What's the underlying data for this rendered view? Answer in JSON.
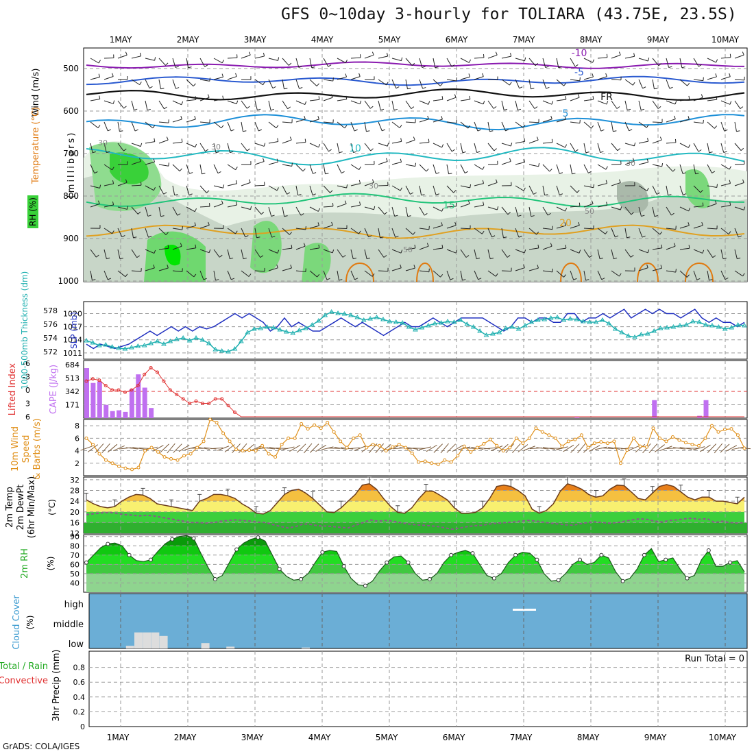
{
  "header": {
    "title": "GFS 0~10day 3-hourly for TOLIARA (43.75E, 23.5S)",
    "credit": "GrADS: COLA/IGES"
  },
  "colors": {
    "rh_green": "#39d139",
    "temp_orange": "#e07a10",
    "temp_purple": "#8a1ab0",
    "slp_blue": "#2030c0",
    "thickness_cyan": "#20b0b0",
    "cape_violet": "#c070f0",
    "lifted_red": "#e03030",
    "wind_orange": "#e0901a",
    "cloud_blue": "#6baed6",
    "precip_green": "#22aa22"
  },
  "chart_data": [
    {
      "panel": "upper_air_cross_section",
      "type": "heatmap",
      "x_tick_labels": [
        "1MAY",
        "2MAY",
        "3MAY",
        "4MAY",
        "5MAY",
        "6MAY",
        "7MAY",
        "8MAY",
        "9MAY",
        "10MAY"
      ],
      "ylabel": "(millibars)",
      "legend_labels": [
        "RH (%)",
        "Temperature (°C)",
        "Wind (m/s)"
      ],
      "y_ticks": [
        500,
        600,
        700,
        800,
        900,
        1000
      ],
      "ylim": [
        450,
        1000
      ],
      "contour_labels": [
        "-10",
        "-5",
        "FR",
        "5",
        "10",
        "15",
        "20",
        "30",
        "50",
        "70"
      ]
    },
    {
      "panel": "slp_thickness",
      "type": "line",
      "ylabel_left": "1000-500mb Thickness (dm)",
      "ylabel_right": "SLP (mb)",
      "left_ticks": [
        572,
        574,
        576,
        578
      ],
      "right_ticks": [
        1011,
        1014,
        1017,
        1020
      ],
      "series": [
        {
          "name": "SLP",
          "axis": "right",
          "values": [
            1013,
            1012,
            1013,
            1012.5,
            1012,
            1012.5,
            1013,
            1014,
            1015,
            1016,
            1015,
            1016,
            1017,
            1016,
            1017,
            1016,
            1017,
            1016.5,
            1017,
            1018,
            1019,
            1020,
            1019,
            1020,
            1019,
            1018,
            1016,
            1017,
            1019,
            1017,
            1018,
            1017,
            1016,
            1016,
            1017,
            1018,
            1019,
            1018,
            1017,
            1018,
            1017,
            1016,
            1015,
            1016,
            1017,
            1018,
            1017,
            1017,
            1018,
            1019,
            1018,
            1017,
            1018,
            1019,
            1019,
            1019,
            1019,
            1018,
            1017,
            1016,
            1017,
            1019,
            1019,
            1018,
            1019,
            1019,
            1018,
            1018,
            1020,
            1020,
            1018,
            1019,
            1019,
            1020,
            1019,
            1020,
            1021,
            1019,
            1020,
            1021,
            1020,
            1021,
            1020,
            1020,
            1019,
            1020,
            1021,
            1019,
            1018,
            1019,
            1018,
            1018,
            1017,
            1018
          ]
        },
        {
          "name": "Thickness",
          "axis": "left",
          "values": [
            573.6,
            573.3,
            572.9,
            573,
            572.7,
            572.5,
            572.4,
            572.6,
            572.8,
            572.9,
            573.2,
            573.5,
            573.1,
            573.5,
            573.8,
            574,
            573.6,
            574,
            573.7,
            573.2,
            572.3,
            572.1,
            572,
            572.4,
            573.5,
            574.8,
            575.3,
            575.4,
            575.6,
            575.5,
            575.2,
            574.9,
            574.7,
            575.1,
            575.4,
            575.9,
            576.5,
            577.3,
            577.8,
            577.6,
            577.5,
            577.3,
            577,
            576.6,
            576.8,
            577,
            576.7,
            576.4,
            576.3,
            576.2,
            575.6,
            575.2,
            575.5,
            575.8,
            576.1,
            576.2,
            576.4,
            576.3,
            576.6,
            576,
            575.6,
            575,
            574.4,
            574.6,
            574.8,
            575.4,
            575.6,
            575.3,
            575.8,
            576.3,
            576.6,
            576.7,
            576.9,
            577,
            576.6,
            576.8,
            576.7,
            576.4,
            576.3,
            576.3,
            576.6,
            576.1,
            575.3,
            574.8,
            574.3,
            574.1,
            574.5,
            574.6,
            575,
            575.4,
            575.5,
            575.6,
            575.8,
            575.9,
            576.4,
            576.3,
            575.9,
            575.8,
            575.6,
            575.3,
            575.5,
            575.9,
            575.8
          ]
        }
      ]
    },
    {
      "panel": "cape_lifted_index",
      "type": "bar",
      "ylabel_left": "Lifted Index",
      "ylabel_right": "CAPE (J/kg)",
      "left_ticks": [
        "-6",
        "-3",
        "0",
        "3",
        "6"
      ],
      "right_ticks": [
        171,
        342,
        513,
        684
      ],
      "cape_values": [
        640,
        450,
        470,
        170,
        90,
        100,
        80,
        370,
        560,
        390,
        130,
        0,
        0,
        0,
        0,
        0,
        0,
        0,
        0,
        0,
        0,
        0,
        0,
        0,
        0,
        0,
        0,
        0,
        0,
        0,
        0,
        0,
        0,
        0,
        0,
        0,
        0,
        0,
        0,
        0,
        0,
        0,
        0,
        0,
        0,
        0,
        0,
        0,
        0,
        0,
        0,
        0,
        0,
        0,
        0,
        0,
        0,
        0,
        0,
        0,
        0,
        0,
        0,
        0,
        0,
        0,
        0,
        0,
        0,
        0,
        0,
        0,
        0,
        0,
        0,
        0,
        10,
        0,
        0,
        0,
        0,
        0,
        0,
        0,
        0,
        0,
        0,
        0,
        230,
        0,
        0,
        0,
        0,
        0,
        0,
        30,
        230,
        0,
        0,
        0,
        0,
        0,
        0
      ],
      "lifted_index_values": [
        -2,
        -2.5,
        -2.2,
        -1,
        0,
        0,
        0.5,
        0,
        -1,
        -3.5,
        -5,
        -4,
        -2,
        0,
        1,
        2,
        3,
        2.5,
        3,
        3,
        2,
        2,
        3.5,
        5,
        6,
        6,
        6,
        6,
        6,
        6,
        6,
        6,
        6,
        6,
        6,
        6,
        6,
        6,
        6,
        6,
        6,
        6,
        6,
        6,
        6,
        6,
        6,
        6,
        6,
        6,
        6,
        6,
        6,
        6,
        6,
        6,
        6,
        6,
        6,
        6,
        6,
        6,
        6,
        6,
        6,
        6,
        6,
        6,
        6,
        6,
        6,
        6,
        6,
        6,
        6,
        6,
        6,
        6,
        6,
        6,
        6,
        6,
        6,
        6,
        6,
        6,
        6,
        6,
        6,
        6,
        6,
        6,
        6,
        6,
        6,
        6,
        6,
        6,
        6,
        6,
        6,
        6,
        6
      ]
    },
    {
      "panel": "wind_10m",
      "type": "line",
      "ylabel": "10m Wind Speed & Barbs (m/s)",
      "y_ticks": [
        2,
        4,
        6,
        8
      ],
      "ylim": [
        0,
        9
      ],
      "values": [
        6,
        5,
        3.5,
        2.5,
        2,
        1.5,
        1.2,
        1,
        1.3,
        4,
        4.5,
        3.8,
        3,
        2.7,
        2.5,
        3.2,
        3.5,
        4.5,
        5.5,
        9,
        8.5,
        6.8,
        5.5,
        4.2,
        4,
        4.1,
        4,
        4.8,
        3.5,
        3,
        5,
        6,
        6,
        8.3,
        7.5,
        8.1,
        7.6,
        8.5,
        7,
        5.5,
        4.5,
        6,
        6.5,
        4.5,
        5,
        4.8,
        4,
        4.6,
        5,
        4.5,
        3.6,
        2.2,
        2.3,
        2,
        1.8,
        2.5,
        2.2,
        3.2,
        4.7,
        3.8,
        4.5,
        5.1,
        5.8,
        4.8,
        4,
        4.5,
        6,
        5.2,
        6,
        7.6,
        7,
        6.5,
        6,
        4.7,
        5.5,
        5.8,
        6.5,
        4.5,
        5.2,
        5.4,
        5.2,
        5.5,
        2,
        4.1,
        6,
        4.7,
        4.6,
        7.6,
        6,
        5.5,
        6.2,
        5.7,
        5.3,
        5,
        4.8,
        6,
        8,
        7,
        7.4,
        7.5,
        6.5,
        4.4
      ]
    },
    {
      "panel": "temperature_2m",
      "type": "area",
      "ylabel": "2m Temp 2m DewPt (6hr Min/Max) (°C)",
      "y_ticks": [
        12,
        16,
        20,
        24,
        28,
        32
      ],
      "ylim": [
        12,
        33
      ],
      "temp_values": [
        24.5,
        23,
        22,
        21.5,
        22,
        24,
        25.5,
        26.5,
        26.3,
        25,
        23,
        22.5,
        22,
        21.5,
        21,
        20.5,
        24,
        25,
        26.5,
        26.5,
        26,
        25,
        23,
        21.5,
        19.5,
        19.2,
        20.5,
        23.5,
        26.5,
        28,
        28.5,
        27,
        25,
        22.5,
        20,
        19.7,
        21.5,
        24,
        26.5,
        30,
        30.5,
        28.5,
        25,
        22,
        19.8,
        19.5,
        21.5,
        25,
        27.8,
        27.7,
        26.2,
        24.5,
        21.5,
        19.5,
        19.5,
        19.8,
        21.5,
        25,
        29.5,
        30,
        29.5,
        28,
        26,
        21,
        19.5,
        20.5,
        23,
        27.8,
        30.5,
        29.7,
        28.5,
        26.5,
        25.5,
        26,
        28.5,
        30,
        29.8,
        27.5,
        25,
        24.5,
        27,
        29.5,
        30.2,
        29.5,
        27.5,
        25.5,
        24.5,
        25.5,
        25.5,
        24,
        24,
        23.5,
        23,
        25.5
      ],
      "dewpoint_values": [
        19,
        19.3,
        19.6,
        19.8,
        19.5,
        19,
        18.8,
        18.5,
        18.7,
        18.5,
        18,
        17.5,
        17,
        16.5,
        16,
        16,
        15.8,
        16,
        16.5,
        16.8,
        17,
        16.8,
        16.5,
        16.2,
        16,
        15.2,
        14.5,
        14,
        14.5,
        15.5,
        15.3,
        14.8,
        14.7,
        14.5,
        14.2,
        14,
        15,
        16,
        17,
        16.5,
        16.8,
        16.5,
        16,
        15.5,
        15.2,
        15,
        14.8,
        14.5,
        14,
        13.5,
        14,
        14.5,
        14.8,
        15,
        15.5,
        15.8,
        16,
        16.2,
        16.5,
        16.8,
        16.6,
        16.2,
        15.8,
        15.5,
        15.2,
        15,
        15.5,
        16,
        16.3,
        16,
        15.8,
        16,
        16.5,
        17,
        17.4,
        17.2,
        16.5,
        16.2,
        16.8,
        17,
        17.4,
        17.6,
        17.2,
        17.5,
        16,
        16.5,
        16,
        15.8,
        16
      ]
    },
    {
      "panel": "rh_2m",
      "type": "area",
      "ylabel": "2m RH (%)",
      "y_ticks": [
        40,
        50,
        60,
        70,
        80,
        90
      ],
      "ylim": [
        30,
        92
      ],
      "values": [
        62,
        70,
        78,
        82,
        83,
        80,
        70,
        64,
        63,
        65,
        74,
        82,
        87,
        90,
        91,
        88,
        72,
        57,
        44,
        48,
        62,
        76,
        83,
        87,
        89,
        85,
        70,
        55,
        47,
        43,
        44,
        50,
        62,
        73,
        75,
        74,
        58,
        45,
        38,
        37,
        42,
        53,
        62,
        68,
        69,
        62,
        50,
        43,
        44,
        50,
        62,
        70,
        73,
        75,
        72,
        60,
        48,
        45,
        50,
        62,
        70,
        73,
        72,
        65,
        50,
        42,
        43,
        50,
        60,
        65,
        60,
        62,
        70,
        67,
        52,
        42,
        45,
        55,
        70,
        77,
        63,
        65,
        67,
        55,
        45,
        48,
        65,
        75,
        58,
        58,
        62,
        64,
        52
      ]
    },
    {
      "panel": "cloud_cover",
      "type": "bar",
      "ylabel": "Cloud Cover (%)",
      "layer_labels": [
        "high",
        "middle",
        "low"
      ],
      "low_cloud_values": [
        0,
        0,
        0,
        0,
        15,
        90,
        90,
        90,
        70,
        0,
        0,
        0,
        0,
        30,
        0,
        0,
        10,
        0,
        0,
        0,
        0,
        0,
        0,
        0,
        0,
        5,
        0,
        0,
        0
      ],
      "middle_cloud_values": [
        0,
        0,
        0,
        0,
        0,
        0,
        0,
        0,
        0,
        0,
        0,
        0,
        0,
        0,
        0,
        0,
        0,
        0,
        0,
        0,
        0,
        0,
        0,
        0,
        0,
        0,
        0,
        0,
        0
      ],
      "high_cloud_note": "thin high cloud on 7MAY"
    },
    {
      "panel": "precip_3hr",
      "type": "bar",
      "ylabel": "3hr Precip (mm)",
      "series_labels": [
        "Total / Rain",
        "Convective"
      ],
      "y_ticks": [
        "0",
        "0.2",
        "0.4",
        "0.6",
        "0.8"
      ],
      "ylim": [
        0,
        1
      ],
      "annotation": "Run Total = 0",
      "values": []
    }
  ]
}
